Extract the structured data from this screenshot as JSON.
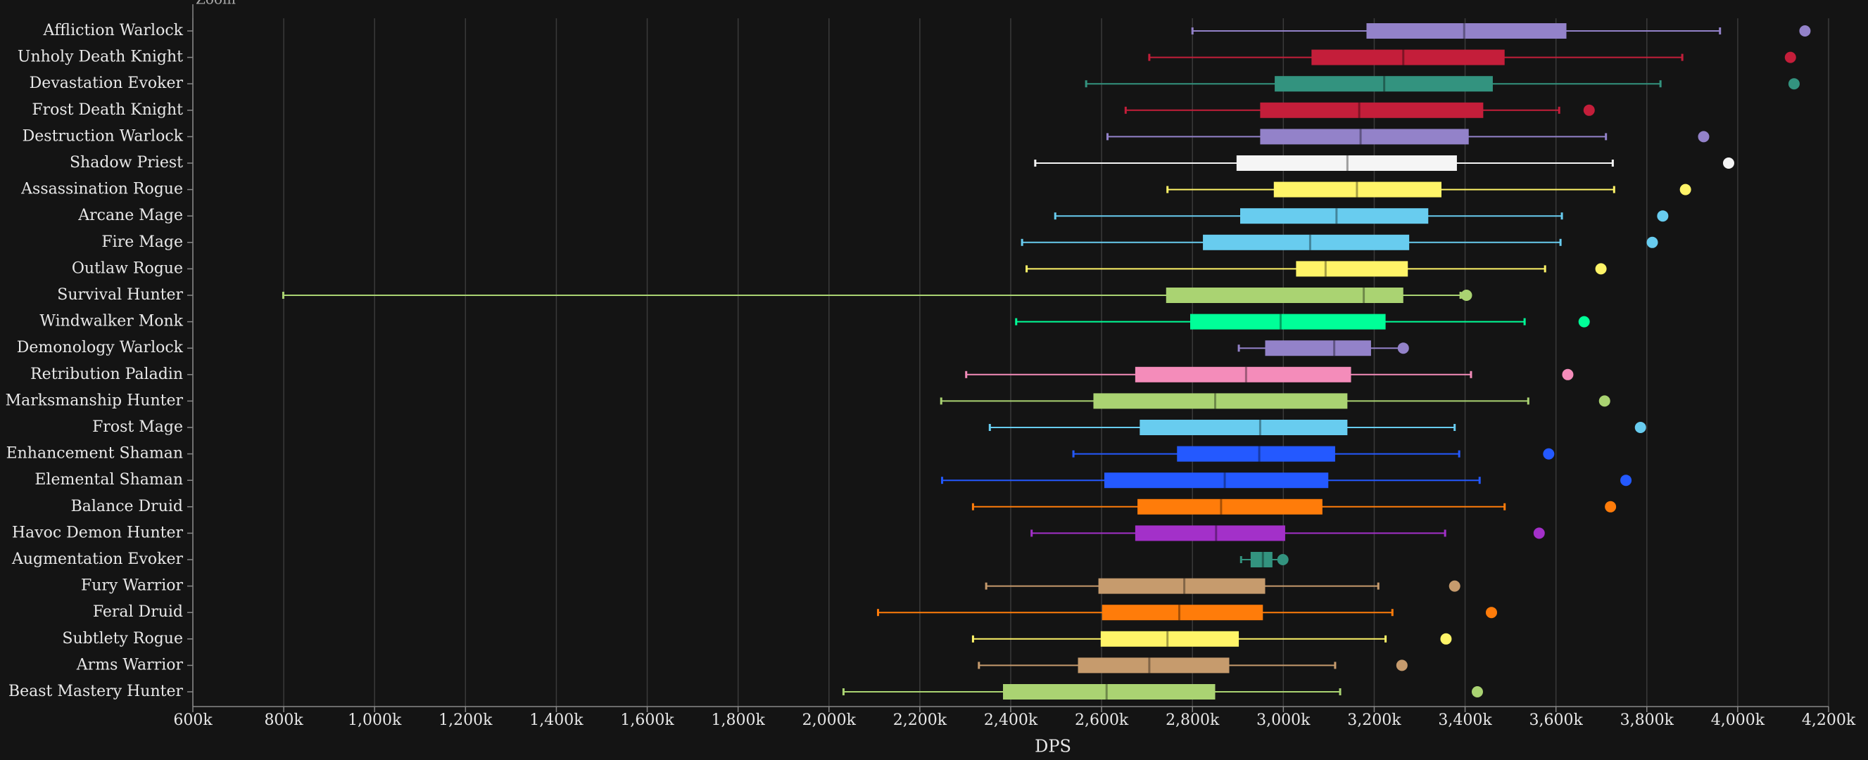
{
  "chart_data": {
    "type": "boxplot",
    "zoom_label": "Zoom",
    "xlabel": "DPS",
    "xlim": [
      600000,
      4200000
    ],
    "xticks": [
      {
        "value": 600000,
        "label": "600k"
      },
      {
        "value": 800000,
        "label": "800k"
      },
      {
        "value": 1000000,
        "label": "1,000k"
      },
      {
        "value": 1200000,
        "label": "1,200k"
      },
      {
        "value": 1400000,
        "label": "1,400k"
      },
      {
        "value": 1600000,
        "label": "1,600k"
      },
      {
        "value": 1800000,
        "label": "1,800k"
      },
      {
        "value": 2000000,
        "label": "2,000k"
      },
      {
        "value": 2200000,
        "label": "2,200k"
      },
      {
        "value": 2400000,
        "label": "2,400k"
      },
      {
        "value": 2600000,
        "label": "2,600k"
      },
      {
        "value": 2800000,
        "label": "2,800k"
      },
      {
        "value": 3000000,
        "label": "3,000k"
      },
      {
        "value": 3200000,
        "label": "3,200k"
      },
      {
        "value": 3400000,
        "label": "3,400k"
      },
      {
        "value": 3600000,
        "label": "3,600k"
      },
      {
        "value": 3800000,
        "label": "3,800k"
      },
      {
        "value": 4000000,
        "label": "4,000k"
      },
      {
        "value": 4200000,
        "label": "4,200k"
      }
    ],
    "grid": true,
    "boxes": [
      {
        "name": "Affliction Warlock",
        "color": "#9382c9",
        "low": 2800000,
        "q1": 3183000,
        "median": 3398000,
        "q3": 3623000,
        "high": 3961000,
        "max": 4148000
      },
      {
        "name": "Unholy Death Knight",
        "color": "#c41e3a",
        "low": 2705000,
        "q1": 3062000,
        "median": 3264000,
        "q3": 3487000,
        "high": 3878000,
        "max": 4116000
      },
      {
        "name": "Devastation Evoker",
        "color": "#33937f",
        "low": 2566000,
        "q1": 2981000,
        "median": 3222000,
        "q3": 3461000,
        "high": 3830000,
        "max": 4124000
      },
      {
        "name": "Frost Death Knight",
        "color": "#c41e3a",
        "low": 2653000,
        "q1": 2949000,
        "median": 3167000,
        "q3": 3440000,
        "high": 3607000,
        "max": 3673000
      },
      {
        "name": "Destruction Warlock",
        "color": "#9382c9",
        "low": 2613000,
        "q1": 2949000,
        "median": 3170000,
        "q3": 3408000,
        "high": 3710000,
        "max": 3925000
      },
      {
        "name": "Shadow Priest",
        "color": "#f5f5f5",
        "low": 2454000,
        "q1": 2897000,
        "median": 3141000,
        "q3": 3382000,
        "high": 3725000,
        "max": 3980000
      },
      {
        "name": "Assassination Rogue",
        "color": "#fff468",
        "low": 2745000,
        "q1": 2979000,
        "median": 3162000,
        "q3": 3348000,
        "high": 3728000,
        "max": 3885000
      },
      {
        "name": "Arcane Mage",
        "color": "#68ccef",
        "low": 2498000,
        "q1": 2905000,
        "median": 3117000,
        "q3": 3319000,
        "high": 3613000,
        "max": 3835000
      },
      {
        "name": "Fire Mage",
        "color": "#68ccef",
        "low": 2425000,
        "q1": 2823000,
        "median": 3059000,
        "q3": 3277000,
        "high": 3610000,
        "max": 3812000
      },
      {
        "name": "Outlaw Rogue",
        "color": "#fff468",
        "low": 2435000,
        "q1": 3028000,
        "median": 3093000,
        "q3": 3274000,
        "high": 3576000,
        "max": 3699000
      },
      {
        "name": "Survival Hunter",
        "color": "#aad372",
        "low": 799000,
        "q1": 2742000,
        "median": 3177000,
        "q3": 3264000,
        "high": 3390000,
        "max": 3403000
      },
      {
        "name": "Windwalker Monk",
        "color": "#00ff98",
        "low": 2412000,
        "q1": 2795000,
        "median": 2994000,
        "q3": 3225000,
        "high": 3531000,
        "max": 3662000
      },
      {
        "name": "Demonology Warlock",
        "color": "#9382c9",
        "low": 2902000,
        "q1": 2960000,
        "median": 3112000,
        "q3": 3193000,
        "high": 3259000,
        "max": 3264000
      },
      {
        "name": "Retribution Paladin",
        "color": "#f48cba",
        "low": 2302000,
        "q1": 2674000,
        "median": 2918000,
        "q3": 3149000,
        "high": 3413000,
        "max": 3626000
      },
      {
        "name": "Marksmanship Hunter",
        "color": "#aad372",
        "low": 2247000,
        "q1": 2582000,
        "median": 2850000,
        "q3": 3141000,
        "high": 3539000,
        "max": 3707000
      },
      {
        "name": "Frost Mage",
        "color": "#68ccef",
        "low": 2354000,
        "q1": 2684000,
        "median": 2949000,
        "q3": 3141000,
        "high": 3377000,
        "max": 3786000
      },
      {
        "name": "Enhancement Shaman",
        "color": "#2459ff",
        "low": 2538000,
        "q1": 2766000,
        "median": 2947000,
        "q3": 3114000,
        "high": 3387000,
        "max": 3584000
      },
      {
        "name": "Elemental Shaman",
        "color": "#2459ff",
        "low": 2249000,
        "q1": 2606000,
        "median": 2871000,
        "q3": 3099000,
        "high": 3432000,
        "max": 3754000
      },
      {
        "name": "Balance Druid",
        "color": "#ff7c0a",
        "low": 2317000,
        "q1": 2679000,
        "median": 2863000,
        "q3": 3086000,
        "high": 3487000,
        "max": 3720000
      },
      {
        "name": "Havoc Demon Hunter",
        "color": "#a330c9",
        "low": 2446000,
        "q1": 2674000,
        "median": 2852000,
        "q3": 3004000,
        "high": 3356000,
        "max": 3563000
      },
      {
        "name": "Augmentation Evoker",
        "color": "#33937f",
        "low": 2907000,
        "q1": 2928000,
        "median": 2955000,
        "q3": 2976000,
        "high": 2994000,
        "max": 2999000
      },
      {
        "name": "Fury Warrior",
        "color": "#c69b6d",
        "low": 2346000,
        "q1": 2593000,
        "median": 2782000,
        "q3": 2960000,
        "high": 3209000,
        "max": 3377000
      },
      {
        "name": "Feral Druid",
        "color": "#ff7c0a",
        "low": 2108000,
        "q1": 2601000,
        "median": 2771000,
        "q3": 2955000,
        "high": 3240000,
        "max": 3458000
      },
      {
        "name": "Subtlety Rogue",
        "color": "#fff468",
        "low": 2317000,
        "q1": 2598000,
        "median": 2745000,
        "q3": 2902000,
        "high": 3225000,
        "max": 3358000
      },
      {
        "name": "Arms Warrior",
        "color": "#c69b6d",
        "low": 2330000,
        "q1": 2548000,
        "median": 2705000,
        "q3": 2881000,
        "high": 3114000,
        "max": 3261000
      },
      {
        "name": "Beast Mastery Hunter",
        "color": "#aad372",
        "low": 2032000,
        "q1": 2383000,
        "median": 2611000,
        "q3": 2850000,
        "high": 3125000,
        "max": 3427000
      }
    ]
  }
}
